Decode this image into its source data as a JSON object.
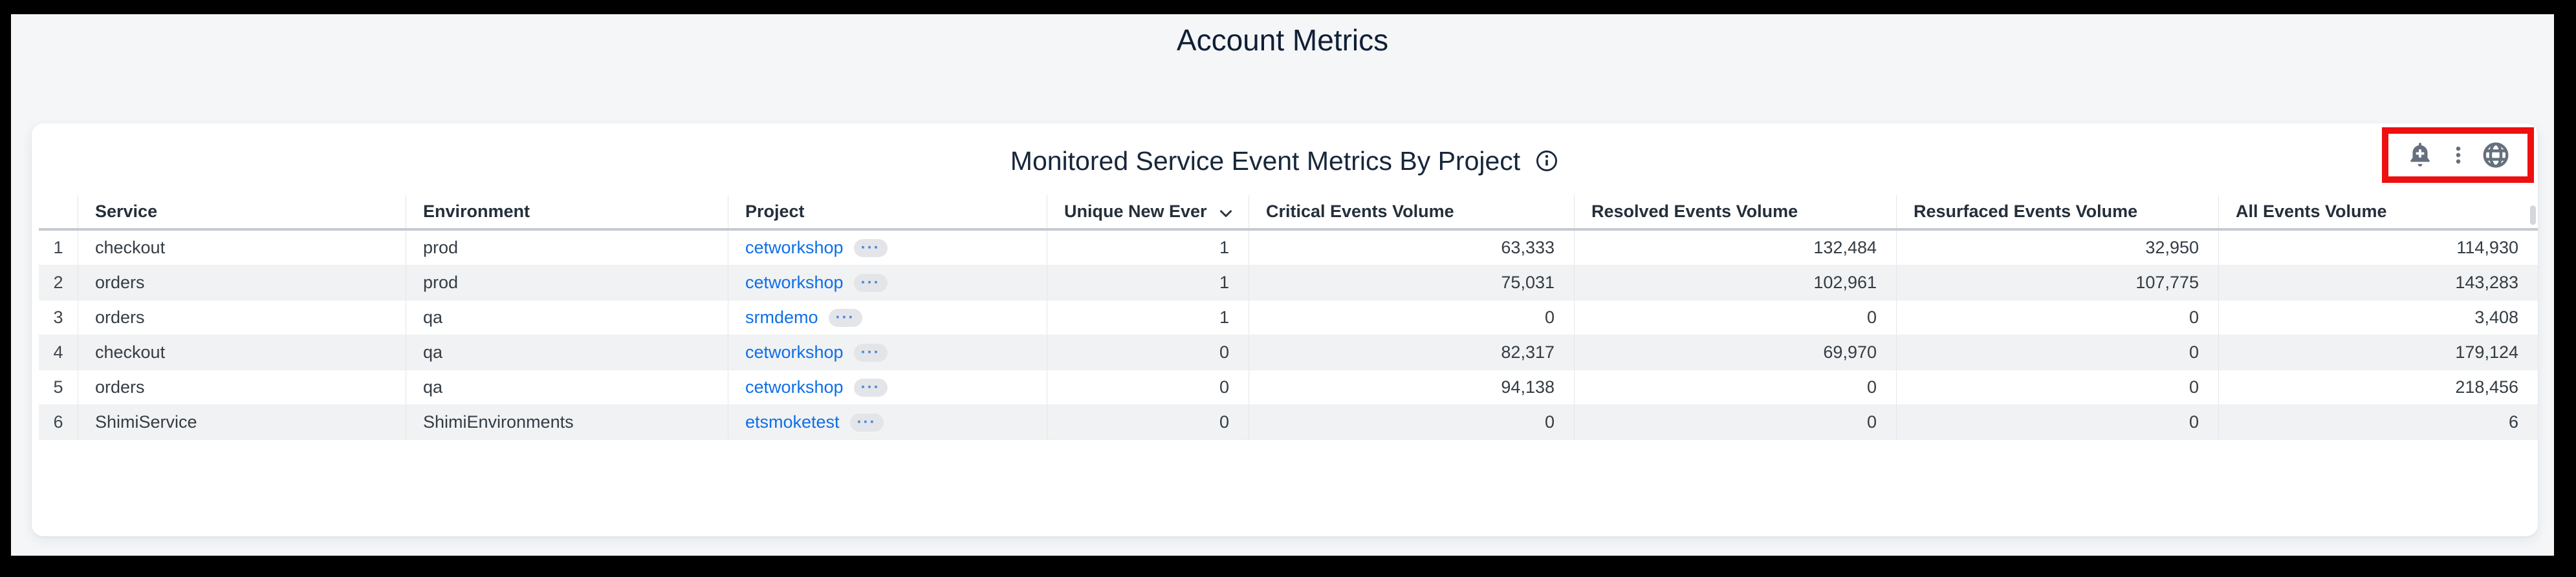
{
  "page": {
    "title": "Account Metrics"
  },
  "panel": {
    "title": "Monitored Service Event Metrics By Project",
    "toolbar": {
      "icons": [
        {
          "name": "add-alert-bell-icon"
        },
        {
          "name": "panel-menu-kebab-icon"
        },
        {
          "name": "globe-icon"
        }
      ]
    }
  },
  "table": {
    "columns": [
      {
        "key": "idx",
        "label": "",
        "align": "idx"
      },
      {
        "key": "service",
        "label": "Service",
        "align": "left"
      },
      {
        "key": "environment",
        "label": "Environment",
        "align": "left"
      },
      {
        "key": "project",
        "label": "Project",
        "align": "left",
        "type": "link"
      },
      {
        "key": "unique_new",
        "label": "Unique New Ever",
        "align": "right",
        "sorted": "desc"
      },
      {
        "key": "critical",
        "label": "Critical Events Volume",
        "align": "right"
      },
      {
        "key": "resolved",
        "label": "Resolved Events Volume",
        "align": "right"
      },
      {
        "key": "resurfaced",
        "label": "Resurfaced Events Volume",
        "align": "right"
      },
      {
        "key": "all",
        "label": "All Events Volume",
        "align": "right"
      }
    ],
    "more_pill_label": "···",
    "rows": [
      {
        "idx": "1",
        "service": "checkout",
        "environment": "prod",
        "project": "cetworkshop",
        "unique_new": "1",
        "critical": "63,333",
        "resolved": "132,484",
        "resurfaced": "32,950",
        "all": "114,930"
      },
      {
        "idx": "2",
        "service": "orders",
        "environment": "prod",
        "project": "cetworkshop",
        "unique_new": "1",
        "critical": "75,031",
        "resolved": "102,961",
        "resurfaced": "107,775",
        "all": "143,283"
      },
      {
        "idx": "3",
        "service": "orders",
        "environment": "qa",
        "project": "srmdemo",
        "unique_new": "1",
        "critical": "0",
        "resolved": "0",
        "resurfaced": "0",
        "all": "3,408"
      },
      {
        "idx": "4",
        "service": "checkout",
        "environment": "qa",
        "project": "cetworkshop",
        "unique_new": "0",
        "critical": "82,317",
        "resolved": "69,970",
        "resurfaced": "0",
        "all": "179,124"
      },
      {
        "idx": "5",
        "service": "orders",
        "environment": "qa",
        "project": "cetworkshop",
        "unique_new": "0",
        "critical": "94,138",
        "resolved": "0",
        "resurfaced": "0",
        "all": "218,456"
      },
      {
        "idx": "6",
        "service": "ShimiService",
        "environment": "ShimiEnvironments",
        "project": "etsmoketest",
        "unique_new": "0",
        "critical": "0",
        "resolved": "0",
        "resurfaced": "0",
        "all": "6"
      }
    ]
  },
  "colors": {
    "accent": "#0e6fe8",
    "highlight": "#ee1010",
    "icon": "#65707e",
    "zebra": "#f1f2f3",
    "title": "#17263b"
  }
}
